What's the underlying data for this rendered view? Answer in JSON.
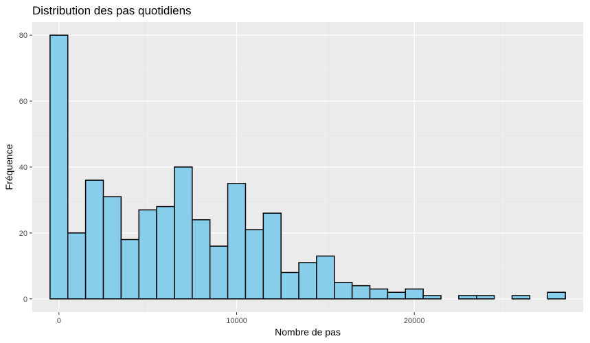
{
  "chart_data": {
    "type": "bar",
    "title": "Distribution des pas quotidiens",
    "xlabel": "Nombre de pas",
    "ylabel": "Fréquence",
    "xlim": [
      -1500,
      29500
    ],
    "ylim": [
      -4,
      84
    ],
    "x_ticks": [
      0,
      10000,
      20000
    ],
    "x_tick_labels": [
      "0",
      "10000",
      "20000"
    ],
    "y_ticks": [
      0,
      20,
      40,
      60,
      80
    ],
    "y_tick_labels": [
      "0",
      "20",
      "40",
      "60",
      "80"
    ],
    "bin_width": 1000,
    "bin_centers": [
      0,
      1000,
      2000,
      3000,
      4000,
      5000,
      6000,
      7000,
      8000,
      9000,
      10000,
      11000,
      12000,
      13000,
      14000,
      15000,
      16000,
      17000,
      18000,
      19000,
      20000,
      21000,
      22000,
      23000,
      24000,
      25000,
      26000,
      27000,
      28000
    ],
    "values": [
      80,
      20,
      36,
      31,
      18,
      27,
      28,
      40,
      24,
      16,
      35,
      21,
      26,
      8,
      11,
      13,
      5,
      4,
      3,
      2,
      3,
      1,
      0,
      1,
      1,
      0,
      1,
      0,
      2
    ],
    "grid": true,
    "legend": "none",
    "colors": {
      "panel_bg": "#ebebeb",
      "grid_major": "#ffffff",
      "grid_minor": "#f5f5f5",
      "bar_fill": "#87ceeb",
      "bar_stroke": "#000000",
      "tick_color": "#333333"
    }
  }
}
